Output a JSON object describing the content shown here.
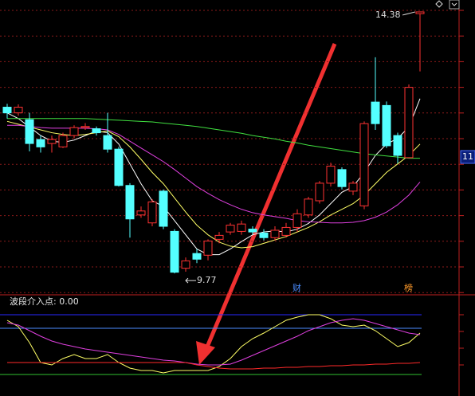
{
  "chart_data": [
    {
      "type": "candlestick",
      "up_color": "#ff3232",
      "down_color": "#54ffff",
      "ylim": [
        9.42,
        14.59
      ],
      "grid": true,
      "open": [
        12.7,
        12.6,
        12.48,
        12.13,
        12.06,
        12.0,
        12.2,
        12.34,
        12.32,
        12.2,
        11.96,
        11.32,
        10.8,
        10.66,
        11.22,
        10.51,
        9.86,
        10.12,
        10.09,
        10.37,
        10.5,
        10.51,
        10.55,
        10.48,
        10.4,
        10.44,
        10.58,
        10.8,
        11.05,
        11.36,
        11.6,
        11.22,
        10.96,
        12.79,
        12.73,
        12.2,
        11.81,
        14.35
      ],
      "high": [
        12.76,
        12.75,
        12.6,
        12.2,
        12.2,
        12.25,
        12.38,
        12.42,
        12.36,
        12.6,
        12.0,
        11.36,
        10.95,
        11.08,
        11.25,
        10.55,
        10.05,
        10.2,
        10.37,
        10.5,
        10.66,
        10.7,
        10.6,
        10.55,
        10.6,
        10.66,
        10.9,
        11.12,
        11.4,
        11.72,
        11.64,
        11.4,
        12.45,
        13.58,
        12.8,
        12.25,
        13.1,
        14.38
      ],
      "low": [
        12.5,
        12.55,
        11.92,
        11.9,
        11.9,
        11.98,
        12.15,
        12.3,
        12.2,
        11.9,
        11.3,
        10.4,
        10.75,
        10.6,
        10.55,
        9.77,
        9.8,
        9.95,
        10.0,
        10.3,
        10.45,
        10.45,
        10.45,
        10.35,
        10.35,
        10.4,
        10.5,
        10.75,
        11.0,
        11.3,
        11.25,
        11.15,
        10.9,
        12.3,
        11.98,
        11.71,
        11.8,
        13.33
      ],
      "close": [
        12.6,
        12.7,
        12.06,
        12.0,
        12.13,
        12.2,
        12.34,
        12.36,
        12.25,
        11.96,
        11.32,
        10.73,
        10.87,
        11.03,
        10.6,
        9.79,
        9.99,
        10.02,
        10.34,
        10.44,
        10.62,
        10.64,
        10.5,
        10.4,
        10.53,
        10.58,
        10.82,
        11.08,
        11.36,
        11.66,
        11.3,
        11.36,
        12.41,
        12.41,
        12.02,
        11.85,
        13.05,
        14.38
      ],
      "series": [
        {
          "color": "#ffffff",
          "values": [
            12.6,
            12.5,
            12.35,
            12.2,
            12.1,
            12.08,
            12.12,
            12.2,
            12.28,
            12.25,
            12.05,
            11.7,
            11.35,
            11.05,
            10.95,
            10.7,
            10.45,
            10.2,
            10.1,
            10.1,
            10.2,
            10.33,
            10.45,
            10.5,
            10.52,
            10.5,
            10.55,
            10.65,
            10.8,
            11.0,
            11.2,
            11.3,
            11.55,
            11.85,
            12.05,
            12.15,
            12.35,
            12.85
          ]
        },
        {
          "color": "#ffff66",
          "values": [
            12.45,
            12.4,
            12.35,
            12.3,
            12.25,
            12.22,
            12.2,
            12.22,
            12.25,
            12.28,
            12.18,
            12.0,
            11.78,
            11.55,
            11.35,
            11.1,
            10.85,
            10.62,
            10.45,
            10.32,
            10.25,
            10.22,
            10.24,
            10.3,
            10.36,
            10.42,
            10.5,
            10.58,
            10.68,
            10.8,
            10.9,
            11.0,
            11.15,
            11.35,
            11.55,
            11.7,
            11.85,
            12.05
          ]
        },
        {
          "color": "#e040e0",
          "values": [
            12.38,
            12.38,
            12.36,
            12.34,
            12.33,
            12.33,
            12.33,
            12.33,
            12.32,
            12.3,
            12.22,
            12.1,
            11.98,
            11.86,
            11.74,
            11.6,
            11.45,
            11.3,
            11.18,
            11.07,
            10.98,
            10.9,
            10.84,
            10.8,
            10.77,
            10.74,
            10.7,
            10.68,
            10.67,
            10.66,
            10.66,
            10.67,
            10.7,
            10.76,
            10.85,
            10.98,
            11.15,
            11.38
          ]
        },
        {
          "color": "#40e040",
          "values": [
            12.5,
            12.5,
            12.5,
            12.5,
            12.5,
            12.5,
            12.5,
            12.5,
            12.49,
            12.48,
            12.47,
            12.46,
            12.45,
            12.44,
            12.42,
            12.4,
            12.38,
            12.36,
            12.33,
            12.3,
            12.27,
            12.24,
            12.2,
            12.17,
            12.14,
            12.1,
            12.07,
            12.03,
            12.0,
            11.97,
            11.94,
            11.91,
            11.88,
            11.86,
            11.84,
            11.82,
            11.8,
            11.8
          ]
        }
      ],
      "max_label": "14.38",
      "min_label": "9.77",
      "price_tag": "11",
      "markers": [
        {
          "index": 26,
          "label": "财",
          "color": "#4a8cff"
        },
        {
          "index": 36,
          "label": "榜",
          "color": "#ff9a2a"
        }
      ]
    },
    {
      "type": "line",
      "title": "波段介入点: 0.00",
      "ylim": [
        0,
        100
      ],
      "reference_lines": [
        {
          "value": 85,
          "color": "#2828ff"
        },
        {
          "value": 68,
          "color": "#4c8cff"
        },
        {
          "value": 10,
          "color": "#30c030"
        }
      ],
      "series": [
        {
          "color": "#ffff66",
          "values": [
            78,
            70,
            50,
            25,
            22,
            30,
            35,
            30,
            30,
            35,
            25,
            18,
            15,
            15,
            12,
            15,
            15,
            15,
            15,
            20,
            30,
            45,
            55,
            62,
            70,
            78,
            82,
            85,
            85,
            80,
            72,
            70,
            72,
            65,
            55,
            45,
            50,
            62
          ]
        },
        {
          "color": "#e040e0",
          "values": [
            75,
            72,
            65,
            58,
            52,
            48,
            45,
            42,
            40,
            38,
            36,
            34,
            32,
            30,
            28,
            27,
            25,
            23,
            22,
            22,
            23,
            28,
            34,
            40,
            46,
            52,
            58,
            65,
            70,
            75,
            78,
            80,
            78,
            74,
            70,
            66,
            62,
            60
          ]
        },
        {
          "color": "#ff2a2a",
          "values": [
            25,
            25,
            25,
            25,
            25,
            25,
            25,
            25,
            25,
            25,
            25,
            25,
            25,
            25,
            25,
            25,
            25,
            22,
            20,
            18,
            17,
            17,
            17,
            18,
            18,
            19,
            19,
            20,
            20,
            21,
            21,
            22,
            22,
            23,
            23,
            24,
            24,
            25
          ]
        }
      ]
    }
  ]
}
